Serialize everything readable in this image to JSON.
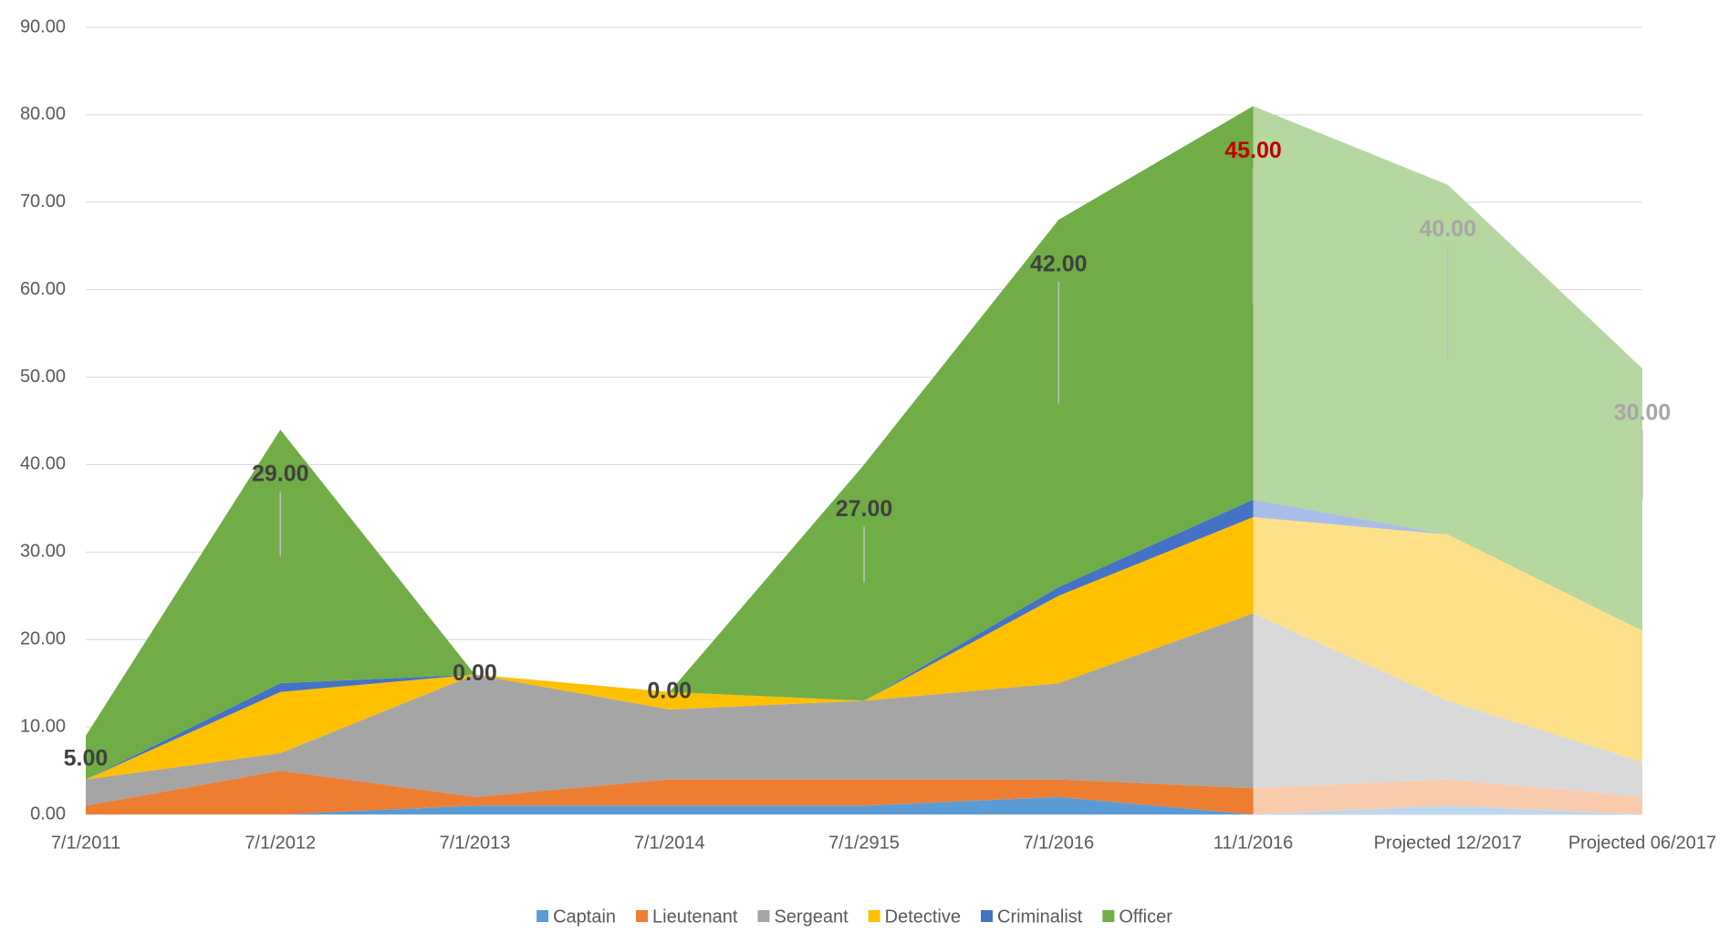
{
  "chart_data": {
    "type": "stacked_area",
    "categories": [
      "7/1/2011",
      "7/1/2012",
      "7/1/2013",
      "7/1/2014",
      "7/1/2915",
      "7/1/2016",
      "11/1/2016",
      "Projected 12/2017",
      "Projected 06/2017"
    ],
    "projected_from_index": 6,
    "series": [
      {
        "name": "Captain",
        "color": "#5b9bd5",
        "projected_color": "#bdd7ee",
        "values": [
          0,
          0,
          1,
          1,
          1,
          2,
          0,
          1,
          0
        ]
      },
      {
        "name": "Lieutenant",
        "color": "#ed7d31",
        "projected_color": "#f8cbad",
        "values": [
          1,
          5,
          1,
          3,
          3,
          2,
          3,
          3,
          2
        ]
      },
      {
        "name": "Sergeant",
        "color": "#a5a5a5",
        "projected_color": "#d9d9d9",
        "values": [
          3,
          2,
          14,
          8,
          9,
          11,
          20,
          9,
          4
        ]
      },
      {
        "name": "Detective",
        "color": "#ffc000",
        "projected_color": "#ffe08a",
        "values": [
          0,
          7,
          0,
          2,
          0,
          10,
          11,
          19,
          15
        ]
      },
      {
        "name": "Criminalist",
        "color": "#4472c4",
        "projected_color": "#a9bee6",
        "values": [
          0,
          1,
          0,
          0,
          0,
          1,
          2,
          0,
          0
        ]
      },
      {
        "name": "Officer",
        "color": "#70ad47",
        "projected_color": "#b6d7a0",
        "values": [
          5,
          29,
          0,
          0,
          27,
          42,
          45,
          40,
          30
        ],
        "value_labels": [
          "5.00",
          "29.00",
          "0.00",
          "0.00",
          "27.00",
          "42.00",
          "45.00",
          "40.00",
          "30.00"
        ],
        "value_label_colors": [
          "#404040",
          "#404040",
          "#404040",
          "#404040",
          "#404040",
          "#404040",
          "#c00000",
          "#a6a6a6",
          "#a6a6a6"
        ]
      }
    ],
    "ylim": [
      0,
      90
    ],
    "yticks": [
      {
        "value": 0,
        "label": "0.00"
      },
      {
        "value": 10,
        "label": "10.00"
      },
      {
        "value": 20,
        "label": "20.00"
      },
      {
        "value": 30,
        "label": "30.00"
      },
      {
        "value": 40,
        "label": "40.00"
      },
      {
        "value": 50,
        "label": "50.00"
      },
      {
        "value": 60,
        "label": "60.00"
      },
      {
        "value": 70,
        "label": "70.00"
      },
      {
        "value": 80,
        "label": "80.00"
      },
      {
        "value": 90,
        "label": "90.00"
      }
    ],
    "grid": true,
    "legend": "bottom"
  }
}
